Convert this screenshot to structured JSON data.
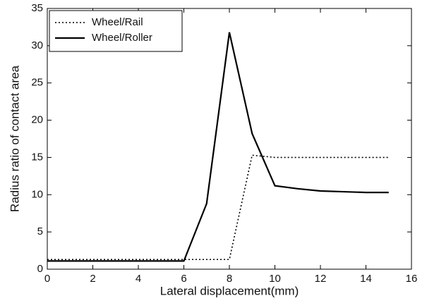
{
  "chart_data": {
    "type": "line",
    "xlabel": "Lateral displacement(mm)",
    "ylabel": "Radius ratio of contact area",
    "x": [
      0,
      1,
      2,
      3,
      4,
      5,
      6,
      7,
      8,
      9,
      10,
      11,
      12,
      13,
      14,
      15
    ],
    "series": [
      {
        "name": "Wheel/Rail",
        "color": "#000000",
        "linestyle": "dotted",
        "values": [
          1.3,
          1.3,
          1.3,
          1.3,
          1.3,
          1.3,
          1.3,
          1.3,
          1.3,
          15.3,
          15,
          15,
          15,
          15,
          15,
          15
        ]
      },
      {
        "name": "Wheel/Roller",
        "color": "#000000",
        "linestyle": "solid",
        "values": [
          1.1,
          1.1,
          1.1,
          1.1,
          1.1,
          1.1,
          1.1,
          8.8,
          31.8,
          18.2,
          11.2,
          10.8,
          10.5,
          10.4,
          10.3,
          10.3
        ]
      }
    ],
    "xlim": [
      0,
      16
    ],
    "xticks": [
      0,
      2,
      4,
      6,
      8,
      10,
      12,
      14,
      16
    ],
    "ylim": [
      0,
      35
    ],
    "yticks": [
      0,
      5,
      10,
      15,
      20,
      25,
      30,
      35
    ],
    "grid": false,
    "legend": "upper left"
  }
}
